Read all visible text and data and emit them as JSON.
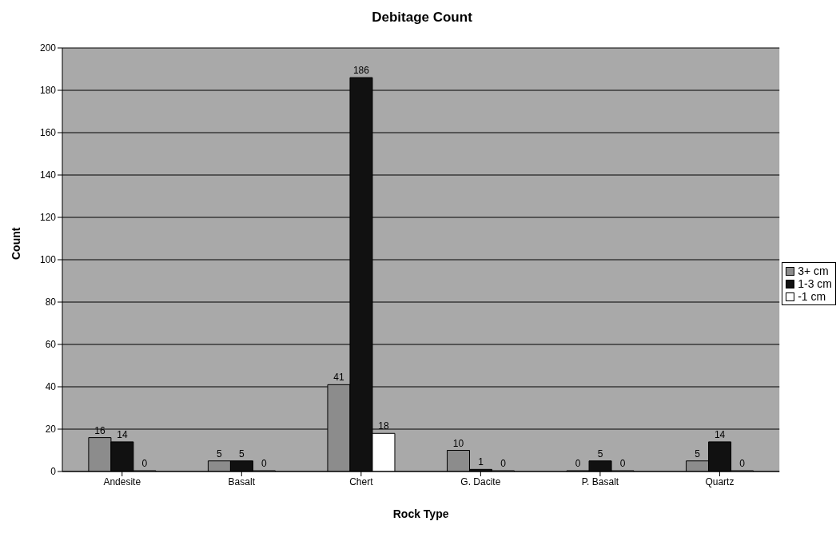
{
  "chart_data": {
    "type": "bar",
    "title": "Debitage Count",
    "xlabel": "Rock Type",
    "ylabel": "Count",
    "categories": [
      "Andesite",
      "Basalt",
      "Chert",
      "G. Dacite",
      "P. Basalt",
      "Quartz"
    ],
    "series": [
      {
        "name": "3+ cm",
        "color": "#8c8c8c",
        "values": [
          16,
          5,
          41,
          10,
          0,
          5
        ]
      },
      {
        "name": "1-3 cm",
        "color": "#111111",
        "values": [
          14,
          5,
          186,
          1,
          5,
          14
        ]
      },
      {
        "name": "-1 cm",
        "color": "#ffffff",
        "values": [
          0,
          0,
          18,
          0,
          0,
          0
        ]
      }
    ],
    "ylim": [
      0,
      200
    ],
    "yticks": [
      0,
      20,
      40,
      60,
      80,
      100,
      120,
      140,
      160,
      180,
      200
    ],
    "grid": "y",
    "legend": "right",
    "data_labels": true
  }
}
